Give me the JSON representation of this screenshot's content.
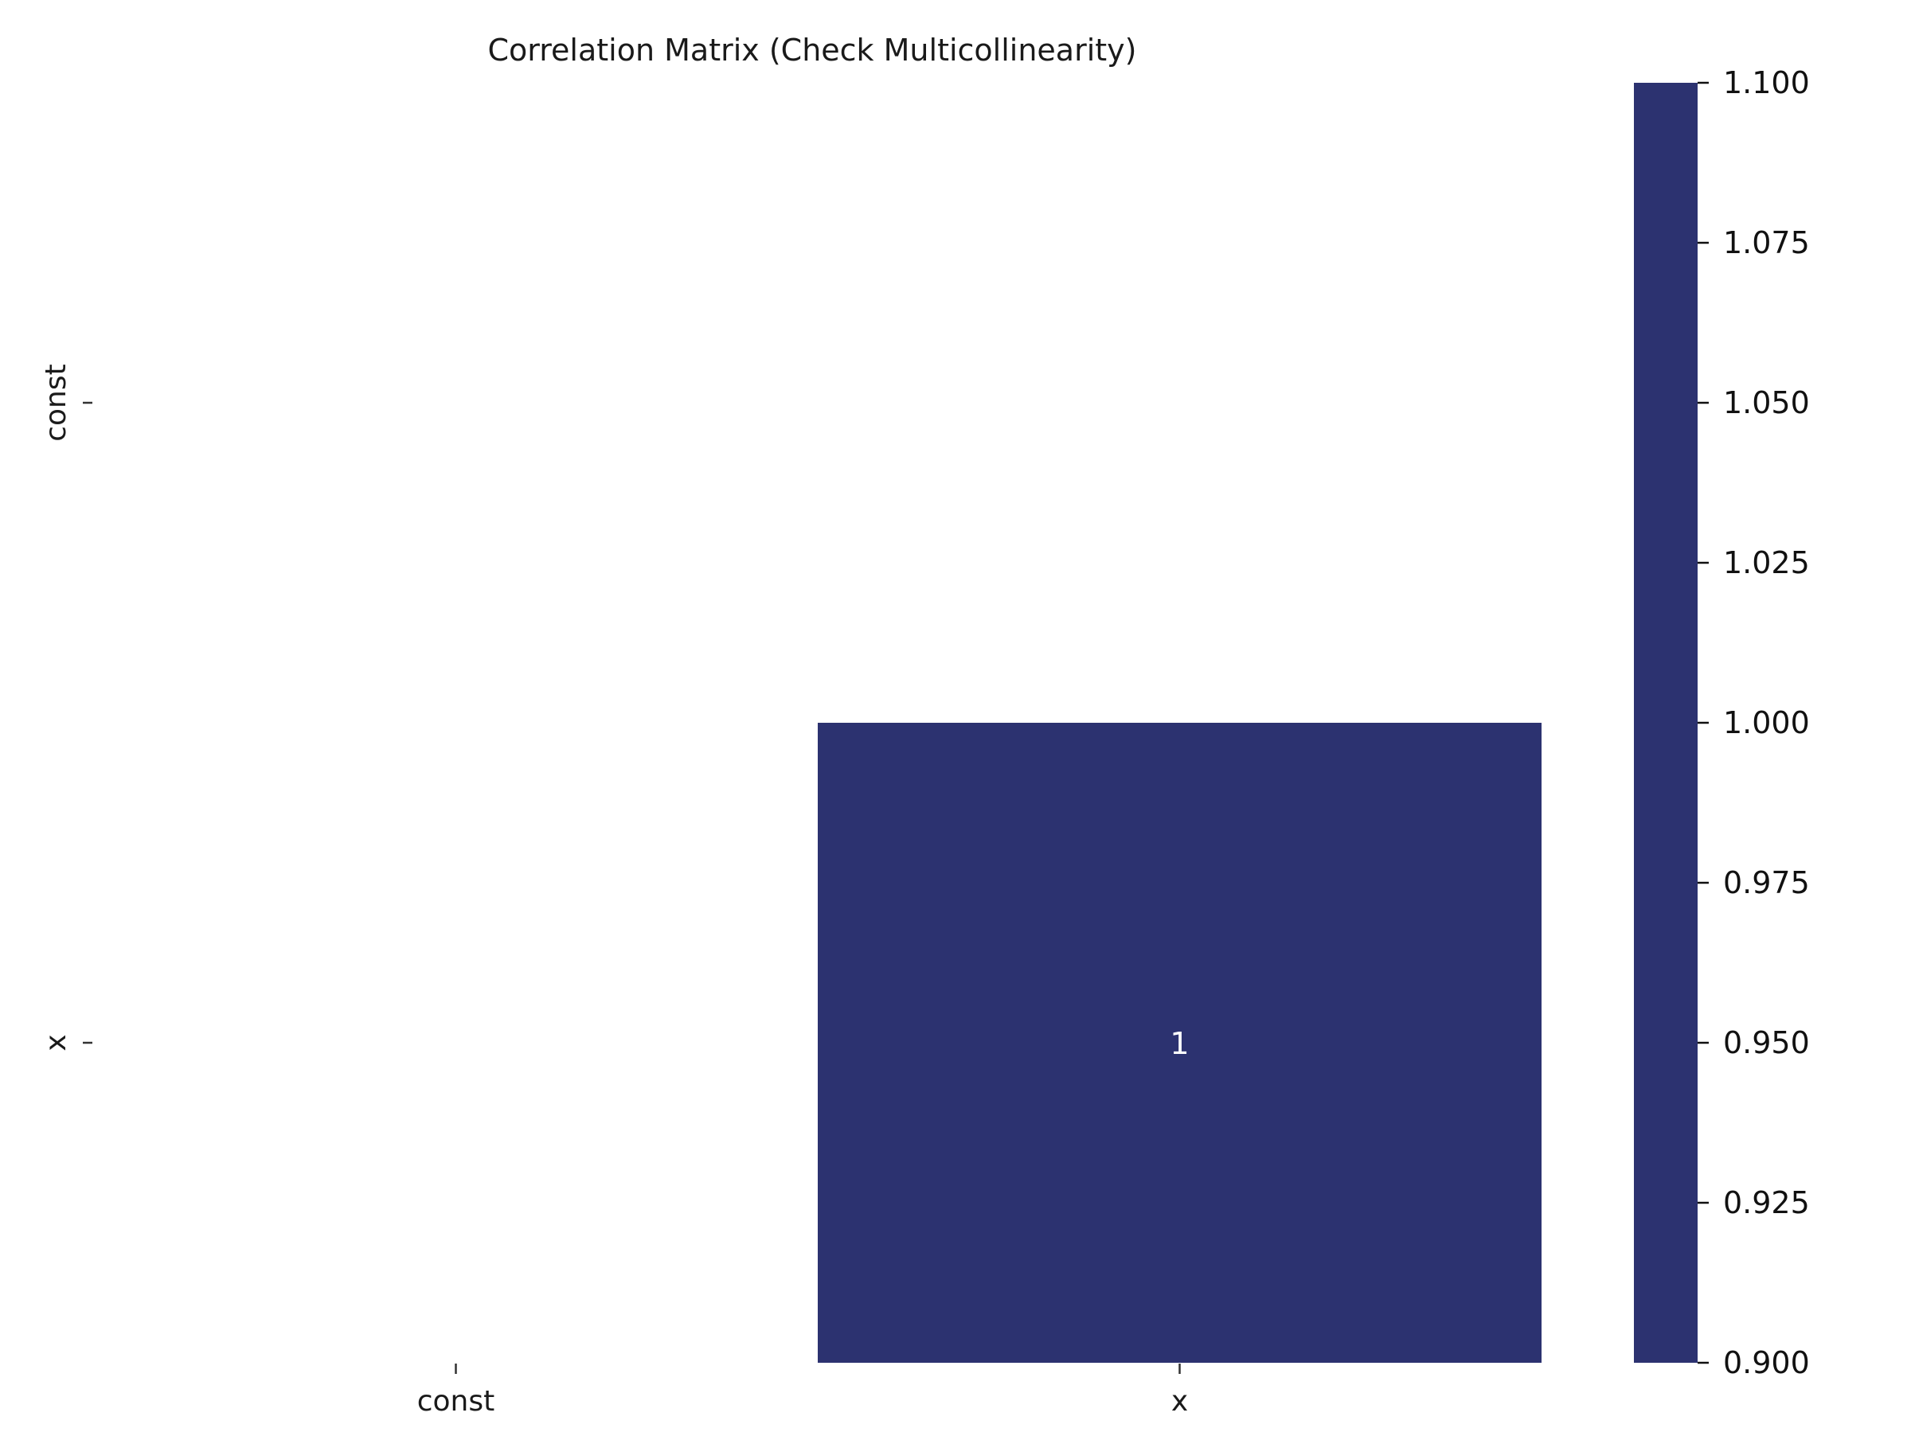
{
  "chart_data": {
    "type": "heatmap",
    "title": "Correlation Matrix (Check Multicollinearity)",
    "x_categories": [
      "const",
      "x"
    ],
    "y_categories": [
      "const",
      "x"
    ],
    "cells": [
      {
        "row": "const",
        "col": "const",
        "value": null,
        "annotation": ""
      },
      {
        "row": "const",
        "col": "x",
        "value": null,
        "annotation": ""
      },
      {
        "row": "x",
        "col": "const",
        "value": null,
        "annotation": ""
      },
      {
        "row": "x",
        "col": "x",
        "value": 1,
        "annotation": "1"
      }
    ],
    "colorbar": {
      "range": [
        0.9,
        1.1
      ],
      "ticks": [
        "0.900",
        "0.925",
        "0.950",
        "0.975",
        "1.000",
        "1.025",
        "1.050",
        "1.075",
        "1.100"
      ],
      "color": "#2c3270"
    },
    "grid": false,
    "legend": "colorbar-right"
  }
}
